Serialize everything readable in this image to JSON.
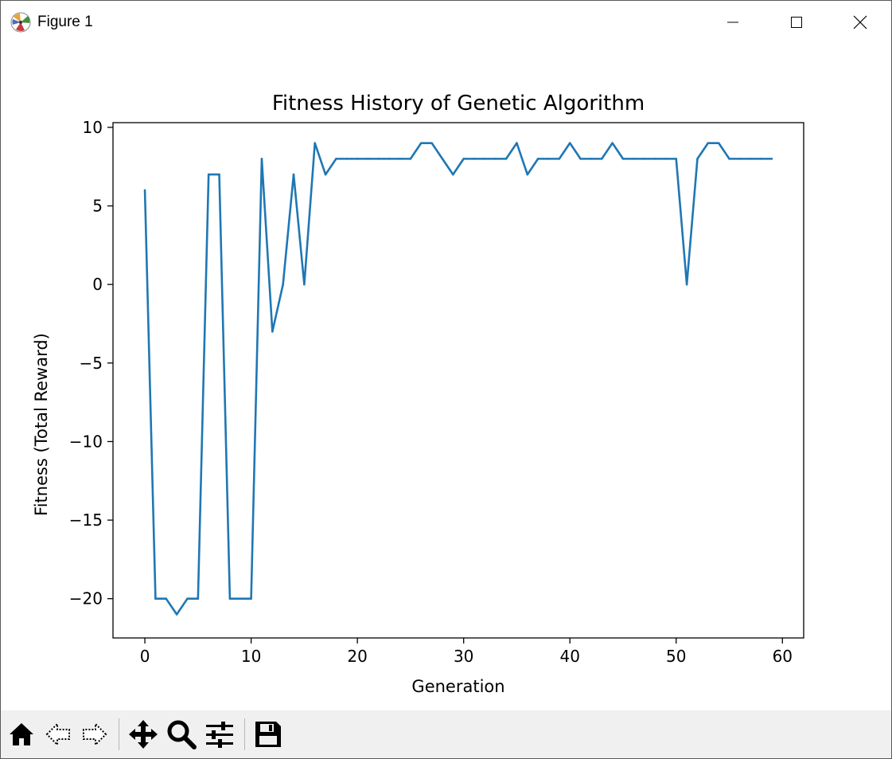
{
  "window": {
    "title": "Figure 1",
    "app_icon": "matplotlib-logo-icon",
    "controls": [
      "minimize-icon",
      "maximize-icon",
      "close-icon"
    ]
  },
  "toolbar": {
    "tools": [
      "home-icon",
      "back-arrow-icon",
      "forward-arrow-icon",
      "pan-move-icon",
      "zoom-magnifier-icon",
      "configure-subplots-icon",
      "save-floppy-icon"
    ]
  },
  "chart_data": {
    "type": "line",
    "title": "Fitness History of Genetic Algorithm",
    "xlabel": "Generation",
    "ylabel": "Fitness (Total Reward)",
    "xlim": [
      -3,
      62
    ],
    "ylim": [
      -22.5,
      10.3
    ],
    "xticks": [
      0,
      10,
      20,
      30,
      40,
      50,
      60
    ],
    "yticks": [
      10,
      5,
      0,
      -5,
      -10,
      -15,
      -20
    ],
    "ytick_labels": [
      "10",
      "5",
      "0",
      "−5",
      "−10",
      "−15",
      "−20"
    ],
    "grid": false,
    "color": "#1f77b4",
    "x": [
      0,
      1,
      2,
      3,
      4,
      5,
      6,
      7,
      8,
      9,
      10,
      11,
      12,
      13,
      14,
      15,
      16,
      17,
      18,
      19,
      20,
      21,
      22,
      23,
      24,
      25,
      26,
      27,
      28,
      29,
      30,
      31,
      32,
      33,
      34,
      35,
      36,
      37,
      38,
      39,
      40,
      41,
      42,
      43,
      44,
      45,
      46,
      47,
      48,
      49,
      50,
      51,
      52,
      53,
      54,
      55,
      56,
      57,
      58,
      59
    ],
    "y": [
      6,
      -20,
      -20,
      -21,
      -20,
      -20,
      7,
      7,
      -20,
      -20,
      -20,
      8,
      -3,
      0,
      7,
      0,
      9,
      7,
      8,
      8,
      8,
      8,
      8,
      8,
      8,
      8,
      9,
      9,
      8,
      7,
      8,
      8,
      8,
      8,
      8,
      9,
      7,
      8,
      8,
      8,
      9,
      8,
      8,
      8,
      9,
      8,
      8,
      8,
      8,
      8,
      8,
      0,
      8,
      9,
      9,
      8,
      8,
      8,
      8,
      8
    ]
  }
}
